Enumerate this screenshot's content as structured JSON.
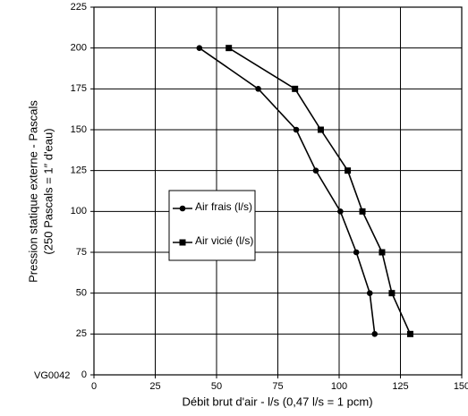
{
  "chart_data": {
    "type": "line",
    "code": "VG0042",
    "x_label": "Débit brut d'air - l/s (0,47 l/s = 1 pcm)",
    "y_label": [
      "Pression statique externe - Pascals",
      "(250 Pascals = 1″ d'eau)"
    ],
    "xlim": [
      0,
      150
    ],
    "xticks": [
      0,
      25,
      50,
      75,
      100,
      125,
      150
    ],
    "ylim": [
      0,
      225
    ],
    "yticks": [
      0,
      25,
      50,
      75,
      100,
      125,
      150,
      175,
      200,
      225
    ],
    "grid": true,
    "series": [
      {
        "name": "Air frais (l/s)",
        "color": "#000000",
        "marker": "circle",
        "x": [
          43,
          67,
          82.5,
          90.5,
          100.5,
          107,
          112.5,
          114.5
        ],
        "values": [
          200,
          175,
          150,
          125,
          100,
          75,
          50,
          25
        ]
      },
      {
        "name": "Air vicié (l/s)",
        "color": "#000000",
        "marker": "square",
        "x": [
          55,
          82,
          92.5,
          103.5,
          109.5,
          117.5,
          121.5,
          129
        ],
        "values": [
          200,
          175,
          150,
          125,
          100,
          75,
          50,
          25
        ]
      }
    ]
  }
}
